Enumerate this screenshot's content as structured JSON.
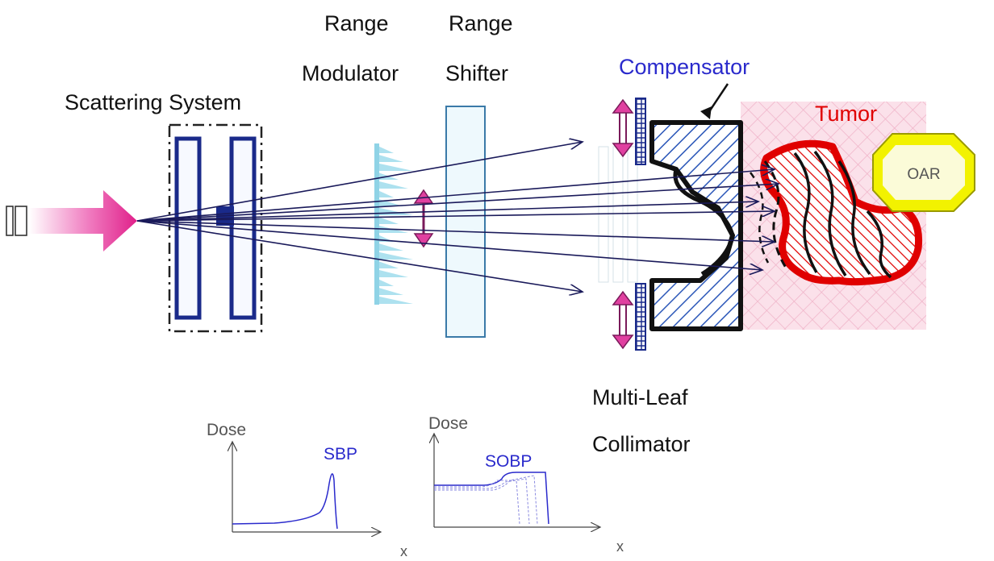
{
  "labels": {
    "scattering_system": "Scattering System",
    "range_modulator_line1": "Range",
    "range_modulator_line2": "Modulator",
    "range_shifter_line1": "Range",
    "range_shifter_line2": "Shifter",
    "compensator": "Compensator",
    "tumor": "Tumor",
    "oar": "OAR",
    "mlc_line1": "Multi-Leaf",
    "mlc_line2": "Collimator"
  },
  "plots": {
    "sbp": {
      "ylabel": "Dose",
      "xlabel": "x",
      "curve_label": "SBP"
    },
    "sobp": {
      "ylabel": "Dose",
      "xlabel": "x",
      "curve_label": "SOBP"
    }
  },
  "colors": {
    "beam": "#e0208a",
    "blue_label": "#2a2acc",
    "tumor_red": "#e00000",
    "oar_yellow": "#f2f200",
    "scatterer": "#1a2a8a",
    "modulator": "#8fd3e6",
    "ray": "#1a1a5a"
  }
}
